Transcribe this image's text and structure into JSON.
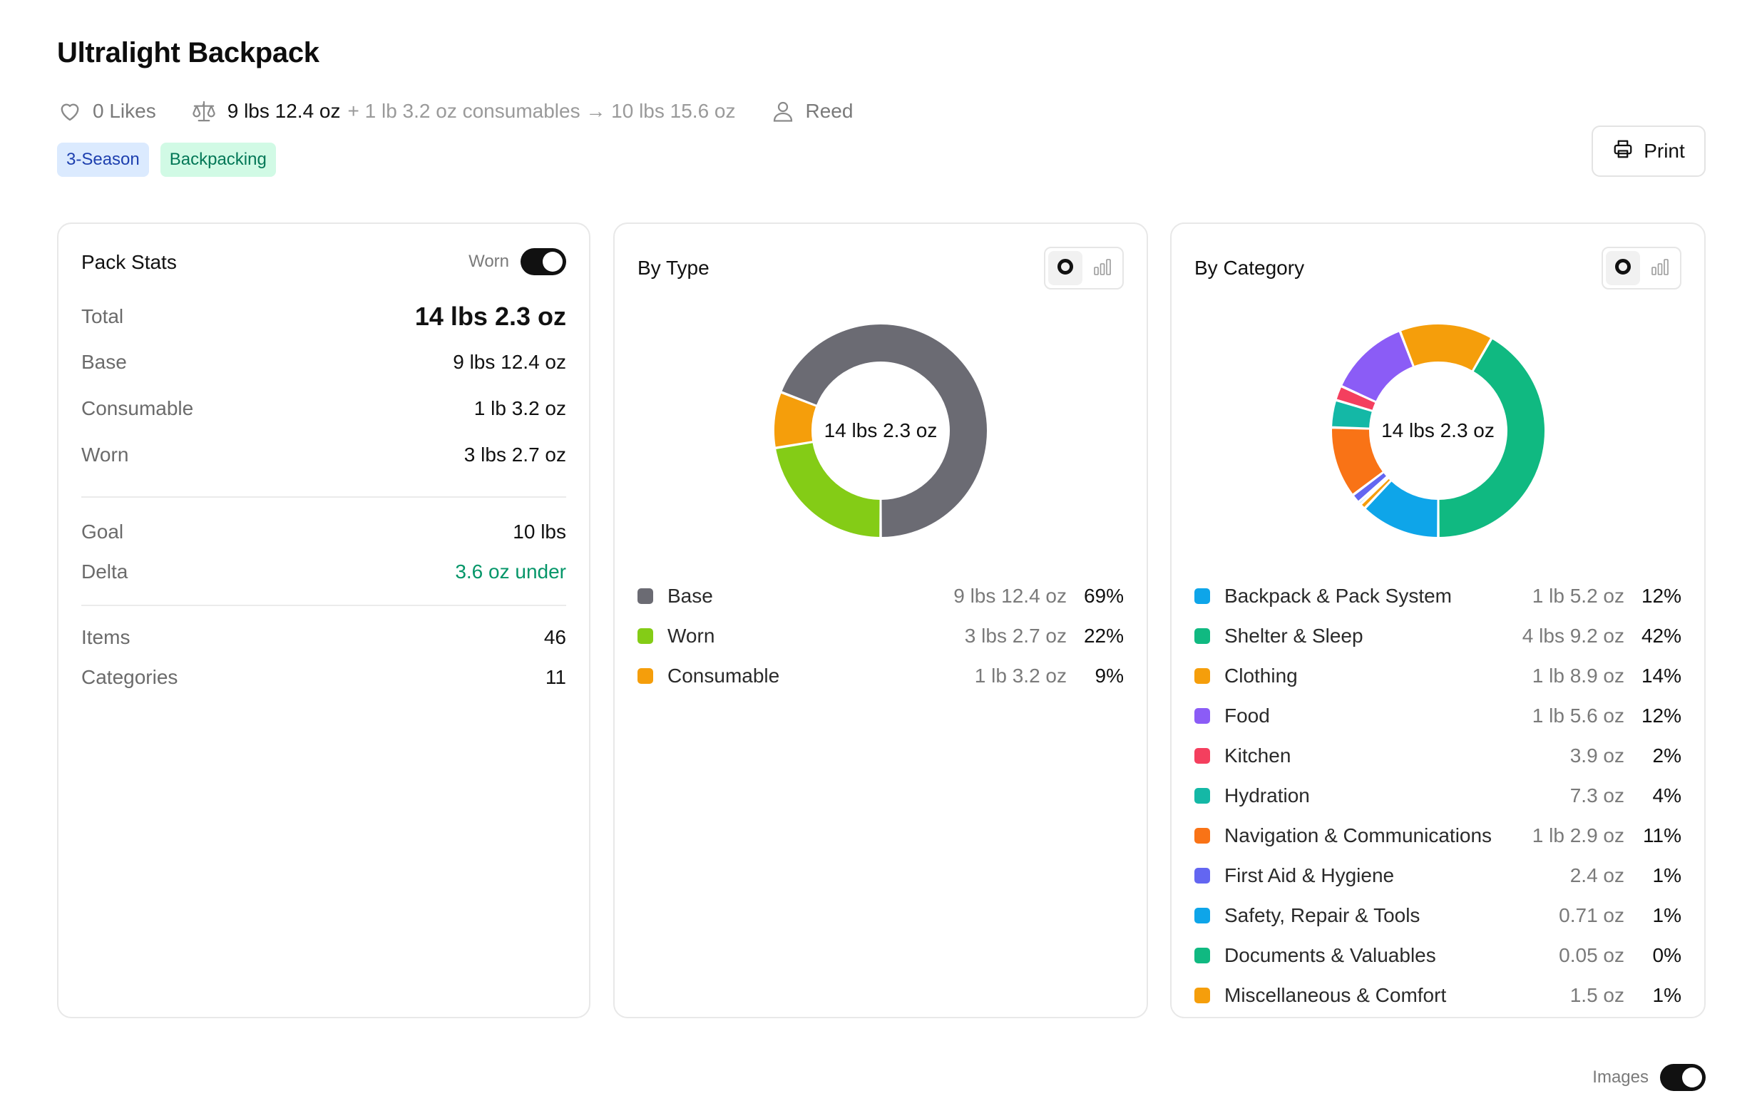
{
  "header": {
    "title": "Ultralight Backpack",
    "likes": "0 Likes",
    "base_weight": "9 lbs 12.4 oz",
    "consumables_extra": "+ 1 lb 3.2 oz consumables → 10 lbs 15.6 oz",
    "author": "Reed",
    "tags": [
      "3-Season",
      "Backpacking"
    ],
    "print_label": "Print",
    "tag_colors": {
      "season_bg": "#dbeafe",
      "season_fg": "#1e40af",
      "pack_bg": "#d1fae5",
      "pack_fg": "#047857"
    }
  },
  "stats": {
    "title": "Pack Stats",
    "worn_toggle_label": "Worn",
    "worn_toggle_on": true,
    "rows": [
      {
        "label": "Total",
        "value": "14 lbs 2.3 oz"
      },
      {
        "label": "Base",
        "value": "9 lbs 12.4 oz"
      },
      {
        "label": "Consumable",
        "value": "1 lb 3.2 oz"
      },
      {
        "label": "Worn",
        "value": "3 lbs 2.7 oz"
      },
      {
        "label": "Goal",
        "value": "10 lbs"
      },
      {
        "label": "Delta",
        "value": "3.6 oz under"
      },
      {
        "label": "Items",
        "value": "46"
      },
      {
        "label": "Categories",
        "value": "11"
      }
    ]
  },
  "by_type": {
    "title": "By Type",
    "center": "14 lbs 2.3 oz",
    "view_icons": [
      "donut-view-icon",
      "bar-view-icon"
    ],
    "items": [
      {
        "name": "Base",
        "weight": "9 lbs 12.4 oz",
        "pct": "69%",
        "color": "#6b6b73"
      },
      {
        "name": "Worn",
        "weight": "3 lbs 2.7 oz",
        "pct": "22%",
        "color": "#84cc16"
      },
      {
        "name": "Consumable",
        "weight": "1 lb 3.2 oz",
        "pct": "9%",
        "color": "#f59e0b"
      }
    ]
  },
  "by_category": {
    "title": "By Category",
    "center": "14 lbs 2.3 oz",
    "view_icons": [
      "donut-view-icon",
      "bar-view-icon"
    ],
    "items": [
      {
        "name": "Backpack & Pack System",
        "weight": "1 lb 5.2 oz",
        "pct": "12%",
        "color": "#0ea5e9"
      },
      {
        "name": "Shelter & Sleep",
        "weight": "4 lbs 9.2 oz",
        "pct": "42%",
        "color": "#10b981"
      },
      {
        "name": "Clothing",
        "weight": "1 lb 8.9 oz",
        "pct": "14%",
        "color": "#f59e0b"
      },
      {
        "name": "Food",
        "weight": "1 lb 5.6 oz",
        "pct": "12%",
        "color": "#8b5cf6"
      },
      {
        "name": "Kitchen",
        "weight": "3.9 oz",
        "pct": "2%",
        "color": "#f43f5e"
      },
      {
        "name": "Hydration",
        "weight": "7.3 oz",
        "pct": "4%",
        "color": "#14b8a6"
      },
      {
        "name": "Navigation & Communications",
        "weight": "1 lb 2.9 oz",
        "pct": "11%",
        "color": "#f97316"
      },
      {
        "name": "First Aid & Hygiene",
        "weight": "2.4 oz",
        "pct": "1%",
        "color": "#6366f1"
      },
      {
        "name": "Safety, Repair & Tools",
        "weight": "0.71 oz",
        "pct": "1%",
        "color": "#0ea5e9"
      },
      {
        "name": "Documents & Valuables",
        "weight": "0.05 oz",
        "pct": "0%",
        "color": "#10b981"
      },
      {
        "name": "Miscellaneous & Comfort",
        "weight": "1.5 oz",
        "pct": "1%",
        "color": "#f59e0b"
      }
    ]
  },
  "footer": {
    "images_toggle_label": "Images",
    "images_toggle_on": true
  },
  "chart_data": [
    {
      "type": "pie",
      "variant": "donut",
      "categories": [
        "Worn",
        "Consumable",
        "Base"
      ],
      "values": [
        3.17,
        1.2,
        9.78
      ],
      "units": "lbs",
      "colors": [
        "#84cc16",
        "#f59e0b",
        "#6b6b73"
      ],
      "center_label": "14 lbs 2.3 oz",
      "title": "By Type"
    },
    {
      "type": "pie",
      "variant": "donut",
      "categories": [
        "Backpack & Pack System",
        "Miscellaneous & Comfort",
        "Documents & Valuables",
        "Safety, Repair & Tools",
        "First Aid & Hygiene",
        "Navigation & Communications",
        "Hydration",
        "Kitchen",
        "Food",
        "Clothing",
        "Shelter & Sleep"
      ],
      "values": [
        21.2,
        1.5,
        0.05,
        0.71,
        2.4,
        18.9,
        7.3,
        3.9,
        21.6,
        24.9,
        73.2
      ],
      "units": "oz",
      "colors": [
        "#0ea5e9",
        "#f59e0b",
        "#10b981",
        "#0ea5e9",
        "#6366f1",
        "#f97316",
        "#14b8a6",
        "#f43f5e",
        "#8b5cf6",
        "#f59e0b",
        "#10b981"
      ],
      "center_label": "14 lbs 2.3 oz",
      "title": "By Category"
    }
  ]
}
